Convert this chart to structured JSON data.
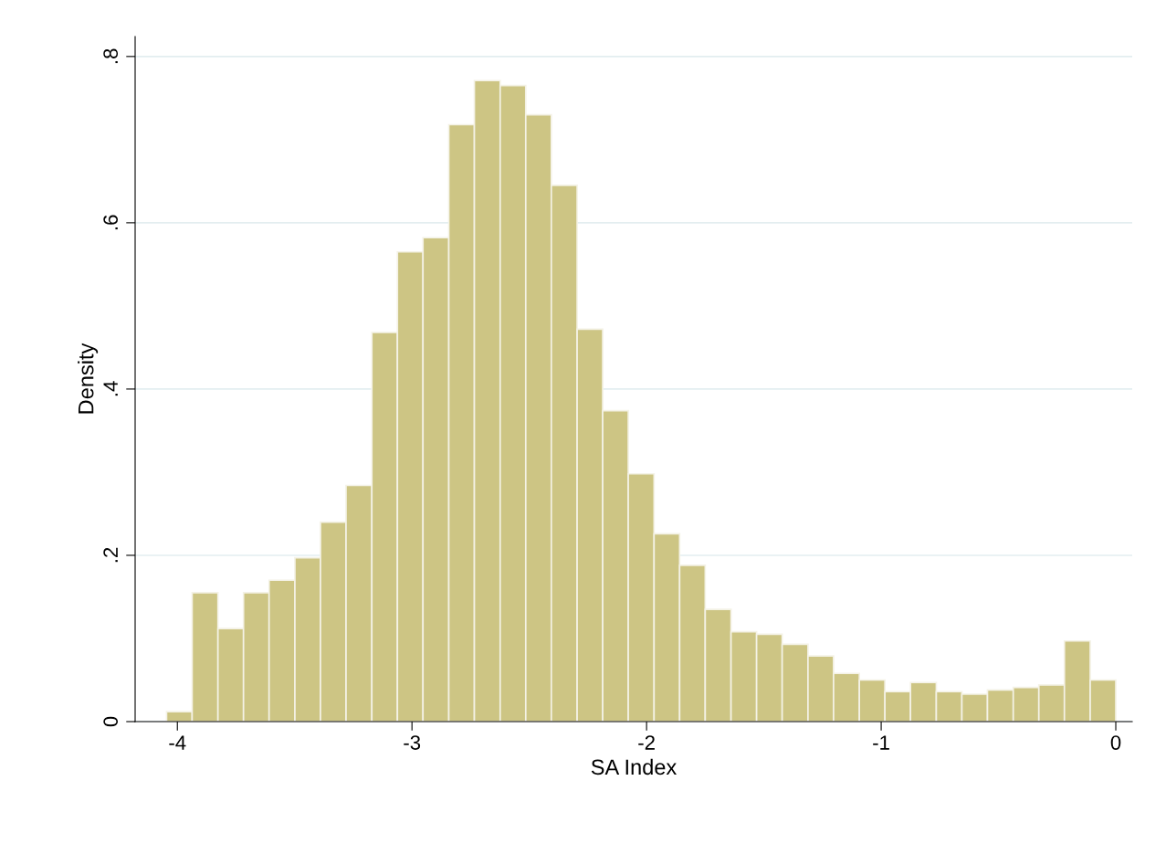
{
  "chart_data": {
    "type": "histogram",
    "xlabel": "SA Index",
    "ylabel": "Density",
    "color": "#cdc584",
    "bins": [
      -4.046,
      -3.937,
      -3.827,
      -3.718,
      -3.609,
      -3.499,
      -3.39,
      -3.281,
      -3.171,
      -3.062,
      -2.953,
      -2.843,
      -2.734,
      -2.624,
      -2.515,
      -2.406,
      -2.296,
      -2.187,
      -2.078,
      -1.968,
      -1.859,
      -1.75,
      -1.64,
      -1.531,
      -1.422,
      -1.312,
      -1.203,
      -1.093,
      -0.984,
      -0.875,
      -0.765,
      -0.656,
      -0.547,
      -0.437,
      -0.328,
      -0.219,
      -0.109,
      0.0
    ],
    "values": [
      0.012,
      0.155,
      0.112,
      0.155,
      0.17,
      0.197,
      0.24,
      0.284,
      0.468,
      0.565,
      0.582,
      0.718,
      0.771,
      0.765,
      0.73,
      0.645,
      0.472,
      0.374,
      0.298,
      0.226,
      0.188,
      0.135,
      0.108,
      0.105,
      0.093,
      0.079,
      0.058,
      0.05,
      0.036,
      0.047,
      0.036,
      0.033,
      0.038,
      0.041,
      0.044,
      0.097,
      0.05
    ],
    "xlim": [
      -4.18,
      0.07
    ],
    "xticks": [
      -4,
      -3,
      -2,
      -1,
      0
    ],
    "ylim": [
      0,
      0.824
    ],
    "yticks": [
      {
        "value": 0,
        "label": "0"
      },
      {
        "value": 0.2,
        "label": ".2"
      },
      {
        "value": 0.4,
        "label": ".4"
      },
      {
        "value": 0.6,
        "label": ".6"
      },
      {
        "value": 0.8,
        "label": ".8"
      }
    ],
    "grid": "y"
  }
}
